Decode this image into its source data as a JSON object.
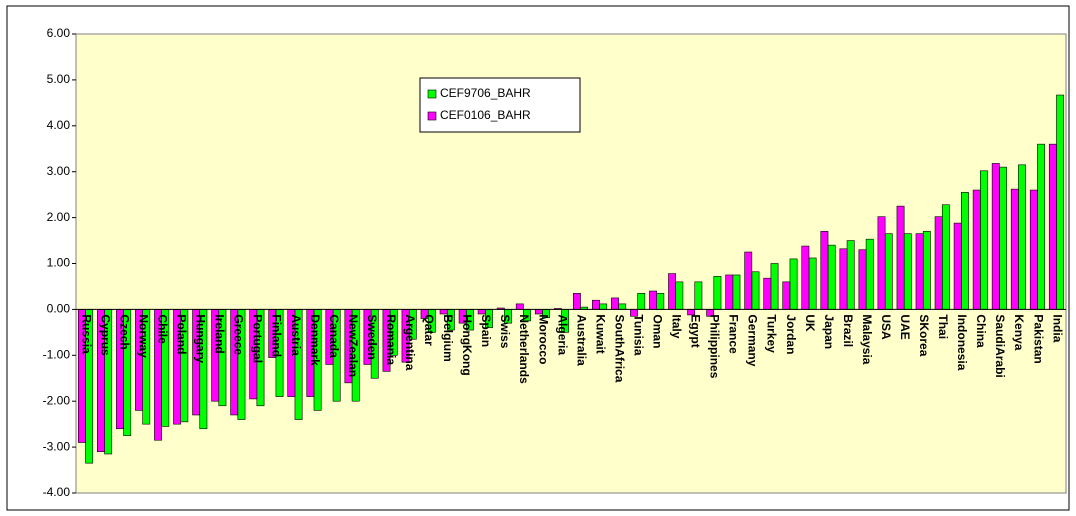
{
  "chart_data": {
    "type": "bar",
    "categories": [
      "Russia",
      "Cyprus",
      "Czech",
      "Norway",
      "Chile",
      "Poland",
      "Hungary",
      "Ireland",
      "Greece",
      "Portugal",
      "Finland",
      "Austria",
      "Denmark",
      "Canada",
      "NewZealan",
      "Sweden",
      "Romania",
      "Argentina",
      "Qatar",
      "Belgium",
      "HongKong",
      "Spain",
      "Swiss",
      "Netherlands",
      "Morocco",
      "Algeria",
      "Australia",
      "Kuwait",
      "SouthAfrica",
      "Tunisia",
      "Oman",
      "Italy",
      "Egypt",
      "Philippines",
      "France",
      "Germany",
      "Turkey",
      "Jordan",
      "UK",
      "Japan",
      "Brazil",
      "Malaysia",
      "USA",
      "UAE",
      "SKorea",
      "Thai",
      "Indonesia",
      "China",
      "SaudiArabi",
      "Kenya",
      "Pakistan",
      "India"
    ],
    "series": [
      {
        "name": "CEF9706_BAHR",
        "color": "#00ff00",
        "values": [
          -3.35,
          -3.15,
          -2.75,
          -2.5,
          -2.55,
          -2.45,
          -2.6,
          -2.1,
          -2.4,
          -2.1,
          -1.9,
          -2.4,
          -2.2,
          -2.0,
          -2.0,
          -1.5,
          -1.0,
          -0.65,
          -0.5,
          -0.45,
          -0.45,
          -0.4,
          -0.3,
          -0.25,
          -0.18,
          -0.5,
          0.05,
          0.12,
          0.12,
          0.35,
          0.35,
          0.6,
          0.6,
          0.72,
          0.75,
          0.82,
          1.0,
          1.1,
          1.12,
          1.4,
          1.5,
          1.53,
          1.65,
          1.65,
          1.7,
          2.28,
          2.55,
          3.02,
          3.1,
          3.15,
          3.6,
          4.67
        ]
      },
      {
        "name": "CEF0106_BAHR",
        "color": "#ff00ff",
        "values": [
          -2.9,
          -3.1,
          -2.6,
          -2.2,
          -2.85,
          -2.5,
          -2.3,
          -2.0,
          -2.3,
          -1.95,
          -1.05,
          -1.9,
          -1.9,
          -1.2,
          -1.6,
          -1.2,
          -1.35,
          -1.15,
          -0.2,
          -0.1,
          -0.3,
          -0.1,
          0.03,
          0.12,
          -0.1,
          0.02,
          0.35,
          0.2,
          0.25,
          -0.15,
          0.4,
          0.78,
          -0.12,
          -0.15,
          0.75,
          1.25,
          0.68,
          0.6,
          1.38,
          1.7,
          1.32,
          1.3,
          2.02,
          2.25,
          1.65,
          2.02,
          1.88,
          2.6,
          3.18,
          2.62,
          2.6,
          3.6
        ]
      }
    ],
    "ylim": [
      -4,
      6
    ],
    "yticks": [
      {
        "value": -4,
        "label": "-4.00"
      },
      {
        "value": -3,
        "label": "-3.00"
      },
      {
        "value": -2,
        "label": "-2.00"
      },
      {
        "value": -1,
        "label": "-1.00"
      },
      {
        "value": 0,
        "label": "0.00"
      },
      {
        "value": 1,
        "label": "1.00"
      },
      {
        "value": 2,
        "label": "2.00"
      },
      {
        "value": 3,
        "label": "3.00"
      },
      {
        "value": 4,
        "label": "4.00"
      },
      {
        "value": 5,
        "label": "5.00"
      },
      {
        "value": 6,
        "label": "6.00"
      }
    ],
    "grid": false,
    "legend": "upper-center"
  }
}
